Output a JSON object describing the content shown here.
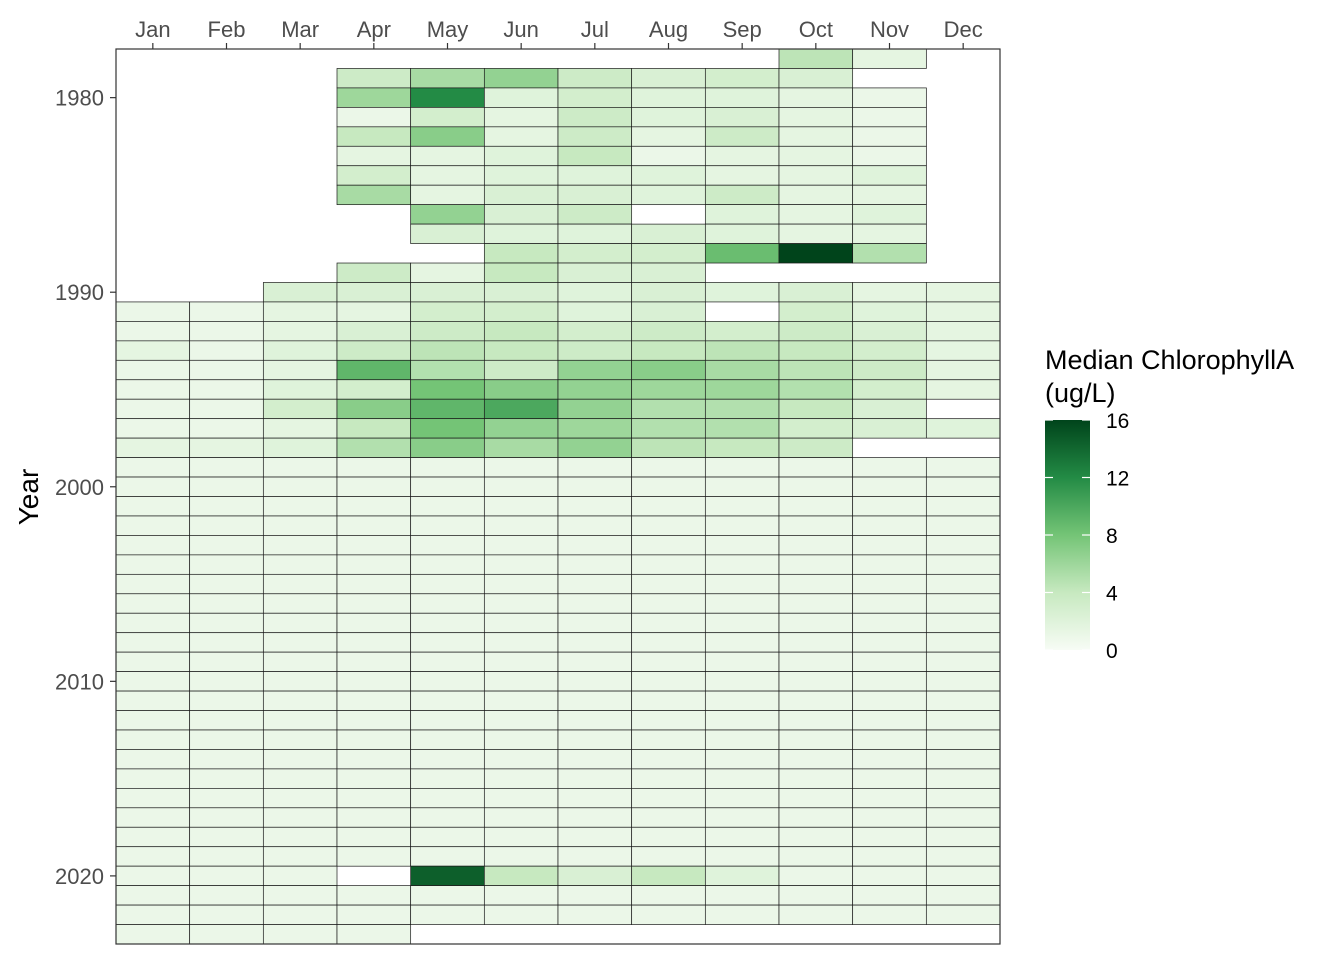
{
  "chart_data": {
    "type": "heatmap",
    "title": "",
    "xlabel": "",
    "ylabel": "Year",
    "x_position": "top",
    "months": [
      "Jan",
      "Feb",
      "Mar",
      "Apr",
      "May",
      "Jun",
      "Jul",
      "Aug",
      "Sep",
      "Oct",
      "Nov",
      "Dec"
    ],
    "year_range": [
      1978,
      2023
    ],
    "year_ticks": [
      "1980",
      "1990",
      "2000",
      "2010",
      "2020"
    ],
    "legend": {
      "title_line1": "Median ChlorophyllA",
      "title_line2": "(ug/L)",
      "ticks": [
        "0",
        "4",
        "8",
        "12",
        "16"
      ],
      "range": [
        0,
        16
      ],
      "low_color": "#f7fcf5",
      "high_color": "#00441b",
      "placement": "right"
    },
    "grid": false,
    "na_color": "#ffffff",
    "rows": [
      {
        "year": 1978,
        "values": [
          null,
          null,
          null,
          null,
          null,
          null,
          null,
          null,
          null,
          4.5,
          1.5,
          null
        ]
      },
      {
        "year": 1979,
        "values": [
          null,
          null,
          null,
          3.5,
          5.5,
          6.5,
          3.5,
          2.5,
          3.0,
          2.5,
          null,
          null
        ]
      },
      {
        "year": 1980,
        "values": [
          null,
          null,
          null,
          6.0,
          12.0,
          2.0,
          3.0,
          2.0,
          2.0,
          1.5,
          1.0,
          null
        ]
      },
      {
        "year": 1981,
        "values": [
          null,
          null,
          null,
          1.0,
          3.0,
          1.5,
          3.5,
          2.0,
          2.5,
          1.5,
          1.0,
          null
        ]
      },
      {
        "year": 1982,
        "values": [
          null,
          null,
          null,
          4.0,
          7.0,
          1.5,
          3.5,
          1.5,
          3.5,
          1.5,
          1.0,
          null
        ]
      },
      {
        "year": 1983,
        "values": [
          null,
          null,
          null,
          1.5,
          1.5,
          2.0,
          4.0,
          1.0,
          1.5,
          1.5,
          1.0,
          null
        ]
      },
      {
        "year": 1984,
        "values": [
          null,
          null,
          null,
          3.0,
          1.5,
          2.0,
          2.0,
          2.0,
          1.5,
          1.5,
          2.0,
          null
        ]
      },
      {
        "year": 1985,
        "values": [
          null,
          null,
          null,
          5.5,
          1.5,
          2.5,
          2.5,
          2.0,
          3.5,
          1.5,
          1.5,
          null
        ]
      },
      {
        "year": 1986,
        "values": [
          null,
          null,
          null,
          null,
          6.5,
          2.5,
          3.5,
          null,
          2.0,
          1.5,
          2.0,
          null
        ]
      },
      {
        "year": 1987,
        "values": [
          null,
          null,
          null,
          null,
          2.5,
          2.0,
          2.0,
          2.5,
          2.0,
          1.5,
          1.5,
          null
        ]
      },
      {
        "year": 1988,
        "values": [
          null,
          null,
          null,
          null,
          null,
          4.0,
          3.0,
          3.0,
          8.5,
          16.5,
          5.0,
          null
        ]
      },
      {
        "year": 1989,
        "values": [
          null,
          null,
          null,
          3.5,
          1.5,
          4.0,
          2.5,
          2.5,
          null,
          null,
          null,
          null
        ]
      },
      {
        "year": 1990,
        "values": [
          null,
          null,
          2.5,
          2.5,
          2.5,
          2.5,
          2.0,
          2.5,
          2.0,
          2.5,
          1.5,
          1.5
        ]
      },
      {
        "year": 1991,
        "values": [
          1.0,
          1.0,
          1.5,
          1.5,
          3.0,
          3.0,
          2.0,
          2.5,
          null,
          3.0,
          2.0,
          1.5
        ]
      },
      {
        "year": 1992,
        "values": [
          1.0,
          1.0,
          1.5,
          2.5,
          3.5,
          4.0,
          3.0,
          3.5,
          3.0,
          3.5,
          2.5,
          1.5
        ]
      },
      {
        "year": 1993,
        "values": [
          1.5,
          1.0,
          2.0,
          3.5,
          4.5,
          4.0,
          3.5,
          4.0,
          4.5,
          4.0,
          3.0,
          1.5
        ]
      },
      {
        "year": 1994,
        "values": [
          1.0,
          1.0,
          1.5,
          9.0,
          5.0,
          3.5,
          6.5,
          7.0,
          5.5,
          4.5,
          3.5,
          1.5
        ]
      },
      {
        "year": 1995,
        "values": [
          1.0,
          1.0,
          2.0,
          3.0,
          8.0,
          7.0,
          6.5,
          6.0,
          6.0,
          5.0,
          3.0,
          1.5
        ]
      },
      {
        "year": 1996,
        "values": [
          1.0,
          1.0,
          3.0,
          7.0,
          9.0,
          10.0,
          6.5,
          5.0,
          5.0,
          4.0,
          2.5,
          null
        ]
      },
      {
        "year": 1997,
        "values": [
          1.0,
          1.0,
          1.5,
          4.0,
          8.0,
          6.5,
          6.0,
          5.0,
          5.0,
          3.0,
          2.5,
          2.0
        ]
      },
      {
        "year": 1998,
        "values": [
          1.5,
          1.5,
          2.0,
          5.0,
          7.0,
          5.5,
          6.5,
          4.5,
          4.0,
          3.5,
          null,
          null
        ]
      },
      {
        "year": 1999,
        "values": [
          1.0,
          1.0,
          1.0,
          1.0,
          1.0,
          1.0,
          1.0,
          1.0,
          1.0,
          1.0,
          1.0,
          1.0
        ]
      },
      {
        "year": 2000,
        "values": [
          1.0,
          1.0,
          1.0,
          1.0,
          1.0,
          1.0,
          1.0,
          1.0,
          1.0,
          1.0,
          1.0,
          1.0
        ]
      },
      {
        "year": 2001,
        "values": [
          1.0,
          1.0,
          1.0,
          1.0,
          1.0,
          1.0,
          1.0,
          1.0,
          1.0,
          1.0,
          1.0,
          1.0
        ]
      },
      {
        "year": 2002,
        "values": [
          1.0,
          1.0,
          1.0,
          1.0,
          1.0,
          1.0,
          1.0,
          1.0,
          1.0,
          1.0,
          1.0,
          1.0
        ]
      },
      {
        "year": 2003,
        "values": [
          1.0,
          1.0,
          1.0,
          1.0,
          1.0,
          1.0,
          1.0,
          1.0,
          1.0,
          1.0,
          1.0,
          1.0
        ]
      },
      {
        "year": 2004,
        "values": [
          1.0,
          1.0,
          1.0,
          1.0,
          1.0,
          1.0,
          1.0,
          1.0,
          1.0,
          1.0,
          1.0,
          1.0
        ]
      },
      {
        "year": 2005,
        "values": [
          1.0,
          1.0,
          1.0,
          1.0,
          1.0,
          1.0,
          1.0,
          1.0,
          1.0,
          1.0,
          1.0,
          1.0
        ]
      },
      {
        "year": 2006,
        "values": [
          1.0,
          1.0,
          1.0,
          1.0,
          1.0,
          1.0,
          1.0,
          1.0,
          1.0,
          1.0,
          1.0,
          1.0
        ]
      },
      {
        "year": 2007,
        "values": [
          1.0,
          1.0,
          1.0,
          1.0,
          1.0,
          1.0,
          1.0,
          1.0,
          1.0,
          1.0,
          1.0,
          1.0
        ]
      },
      {
        "year": 2008,
        "values": [
          1.0,
          1.0,
          1.0,
          1.0,
          1.0,
          1.0,
          1.0,
          1.0,
          1.0,
          1.0,
          1.0,
          1.0
        ]
      },
      {
        "year": 2009,
        "values": [
          1.0,
          1.0,
          1.0,
          1.0,
          1.0,
          1.0,
          1.0,
          1.0,
          1.0,
          1.0,
          1.0,
          1.0
        ]
      },
      {
        "year": 2010,
        "values": [
          1.0,
          1.0,
          1.0,
          1.0,
          1.0,
          1.0,
          1.0,
          1.0,
          1.0,
          1.0,
          1.0,
          1.0
        ]
      },
      {
        "year": 2011,
        "values": [
          1.0,
          1.0,
          1.0,
          1.0,
          1.0,
          1.0,
          1.0,
          1.0,
          1.0,
          1.0,
          1.0,
          1.0
        ]
      },
      {
        "year": 2012,
        "values": [
          1.0,
          1.0,
          1.0,
          1.0,
          1.0,
          1.0,
          1.0,
          1.0,
          1.0,
          1.0,
          1.0,
          1.0
        ]
      },
      {
        "year": 2013,
        "values": [
          1.0,
          1.0,
          1.0,
          1.0,
          1.0,
          1.0,
          1.0,
          1.0,
          1.0,
          1.0,
          1.0,
          1.0
        ]
      },
      {
        "year": 2014,
        "values": [
          1.0,
          1.0,
          1.0,
          1.0,
          1.0,
          1.0,
          1.0,
          1.0,
          1.0,
          1.0,
          1.0,
          1.0
        ]
      },
      {
        "year": 2015,
        "values": [
          1.0,
          1.0,
          1.0,
          1.0,
          1.0,
          1.0,
          1.0,
          1.0,
          1.0,
          1.0,
          1.0,
          1.0
        ]
      },
      {
        "year": 2016,
        "values": [
          1.0,
          1.0,
          1.0,
          1.0,
          1.0,
          1.0,
          1.0,
          1.0,
          1.0,
          1.0,
          1.0,
          1.0
        ]
      },
      {
        "year": 2017,
        "values": [
          1.0,
          1.0,
          1.0,
          1.0,
          1.0,
          1.0,
          1.0,
          1.0,
          1.0,
          1.0,
          1.0,
          1.0
        ]
      },
      {
        "year": 2018,
        "values": [
          1.0,
          1.0,
          1.0,
          1.0,
          1.0,
          1.0,
          1.0,
          1.0,
          1.0,
          1.0,
          1.0,
          1.0
        ]
      },
      {
        "year": 2019,
        "values": [
          1.0,
          1.0,
          1.0,
          1.0,
          1.0,
          1.0,
          1.0,
          1.0,
          1.0,
          1.0,
          1.0,
          1.0
        ]
      },
      {
        "year": 2020,
        "values": [
          1.0,
          1.0,
          1.0,
          null,
          14.5,
          4.0,
          2.5,
          4.0,
          2.0,
          1.0,
          1.0,
          1.0
        ]
      },
      {
        "year": 2021,
        "values": [
          1.0,
          1.0,
          1.0,
          1.0,
          1.0,
          1.0,
          1.0,
          1.0,
          1.0,
          1.0,
          1.0,
          1.0
        ]
      },
      {
        "year": 2022,
        "values": [
          1.0,
          1.0,
          1.0,
          1.0,
          1.0,
          1.0,
          1.0,
          1.0,
          1.0,
          1.0,
          1.0,
          1.0
        ]
      },
      {
        "year": 2023,
        "values": [
          1.0,
          1.0,
          1.0,
          1.0,
          null,
          null,
          null,
          null,
          null,
          null,
          null,
          null
        ]
      }
    ]
  }
}
